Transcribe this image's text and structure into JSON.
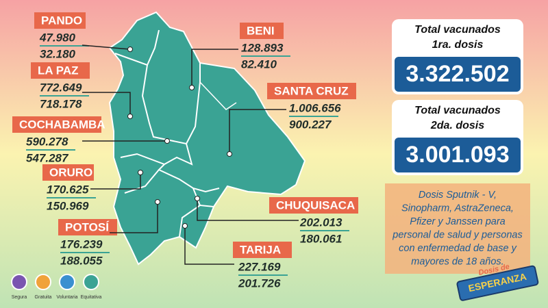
{
  "departments": [
    {
      "name": "PANDO",
      "dose1": "47.980",
      "dose2": "32.180"
    },
    {
      "name": "LA PAZ",
      "dose1": "772.649",
      "dose2": "718.178"
    },
    {
      "name": "COCHABAMBA",
      "dose1": "590.278",
      "dose2": "547.287"
    },
    {
      "name": "ORURO",
      "dose1": "170.625",
      "dose2": "150.969"
    },
    {
      "name": "POTOSÍ",
      "dose1": "176.239",
      "dose2": "188.055"
    },
    {
      "name": "BENI",
      "dose1": "128.893",
      "dose2": "82.410"
    },
    {
      "name": "SANTA CRUZ",
      "dose1": "1.006.656",
      "dose2": "900.227"
    },
    {
      "name": "CHUQUISACA",
      "dose1": "202.013",
      "dose2": "180.061"
    },
    {
      "name": "TARIJA",
      "dose1": "227.169",
      "dose2": "201.726"
    }
  ],
  "totals": [
    {
      "title_lines": [
        "Total vacunados",
        "1ra. dosis"
      ],
      "value": "3.322.502"
    },
    {
      "title_lines": [
        "Total vacunados",
        "2da. dosis"
      ],
      "value": "3.001.093"
    }
  ],
  "note_lines": [
    "Dosis Sputnik - V,",
    "Sinopharm, AstraZeneca,",
    "Pfizer y Janssen para",
    "personal de salud y personas",
    "con enfermedad de base y",
    "mayores de 18 años."
  ],
  "badges": [
    "Segura",
    "Gratuita",
    "Voluntaria",
    "Equitativa"
  ],
  "logo": {
    "line1": "Dosis de",
    "line2": "ESPERANZA"
  }
}
